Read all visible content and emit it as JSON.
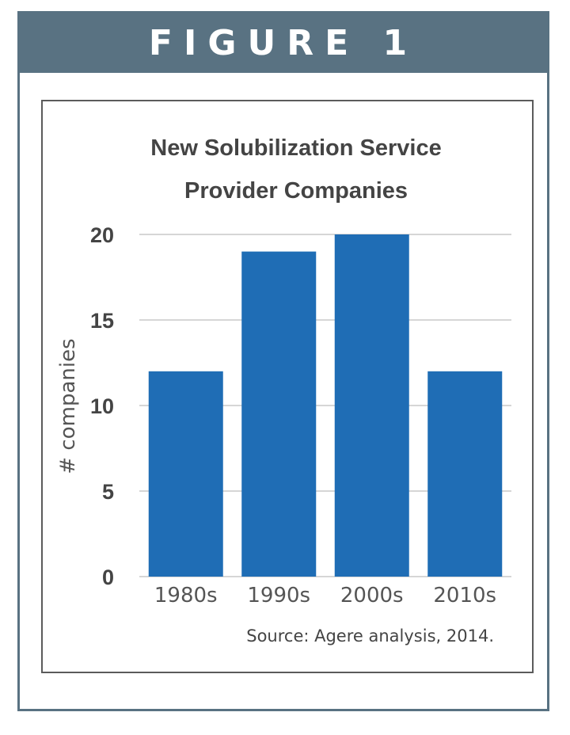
{
  "header": {
    "label": "FIGURE 1"
  },
  "chart_data": {
    "type": "bar",
    "title_lines": [
      "New Solubilization Service",
      "Provider Companies"
    ],
    "categories": [
      "1980s",
      "1990s",
      "2000s",
      "2010s"
    ],
    "values": [
      12,
      19,
      20,
      12
    ],
    "ylabel": "# companies",
    "xlabel": "",
    "ylim": [
      0,
      20
    ],
    "yticks": [
      0,
      5,
      10,
      15,
      20
    ],
    "grid": true,
    "bar_color": "#1f6db5",
    "grid_color": "#c8c8c8",
    "source": "Source: Agere analysis, 2014."
  }
}
